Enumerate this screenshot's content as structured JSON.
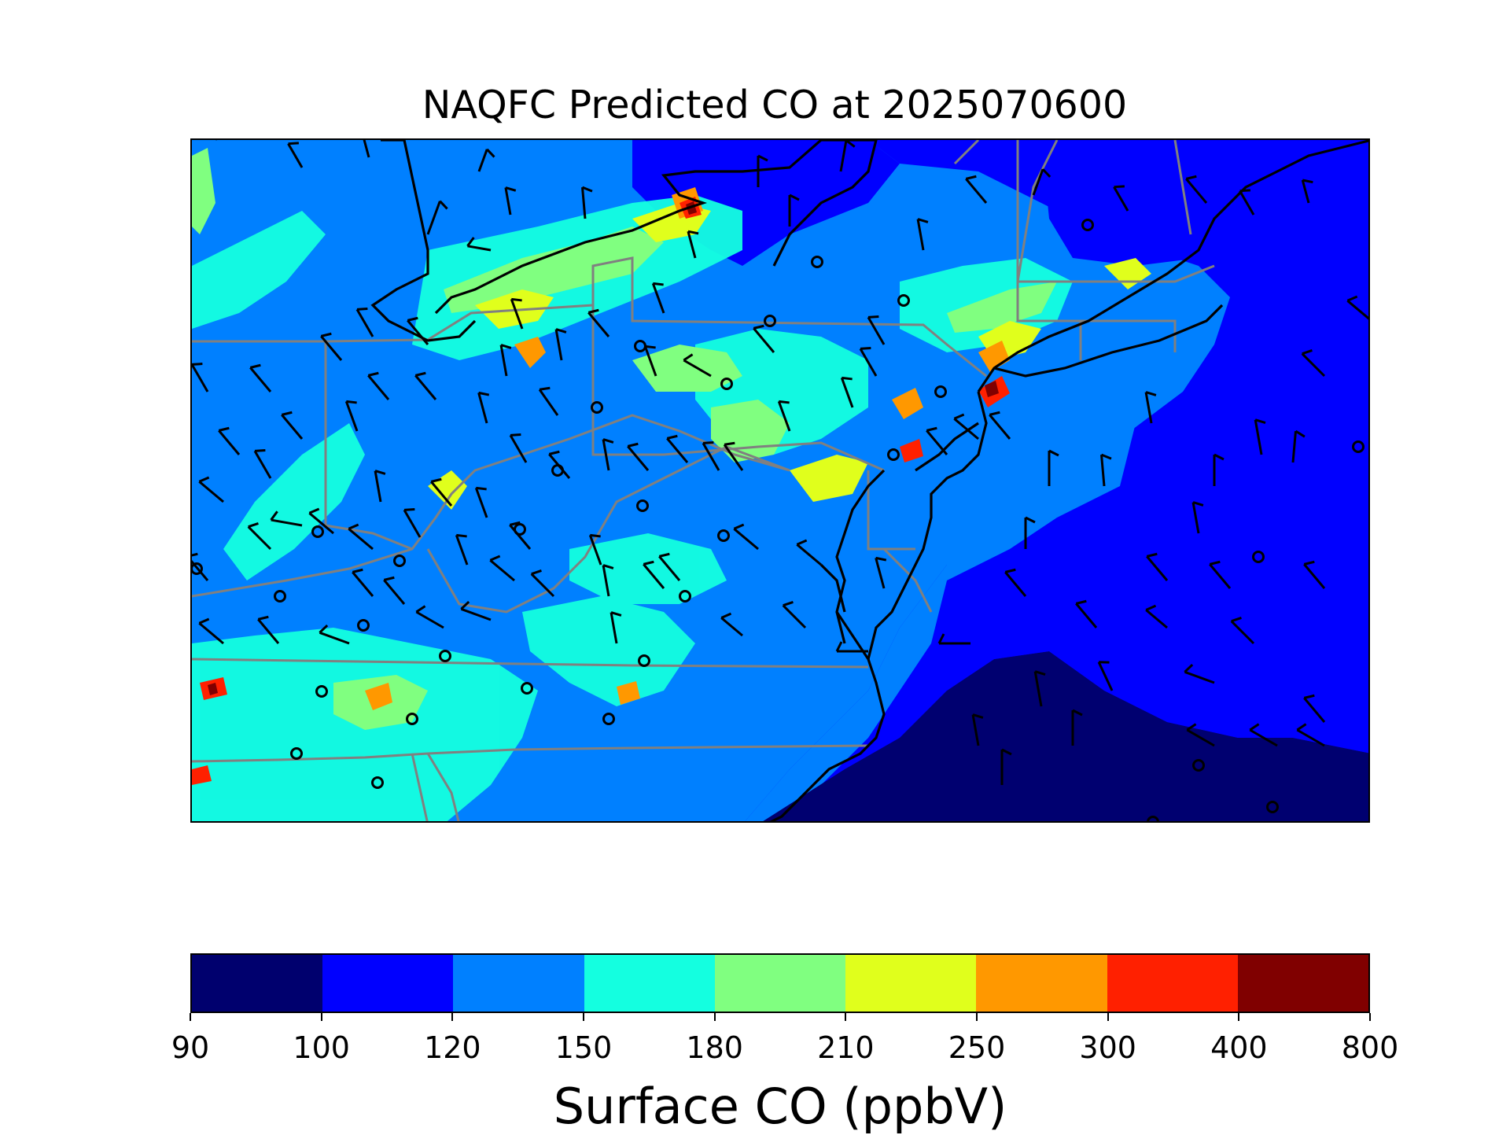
{
  "title": "NAQFC Predicted CO at 2025070600",
  "colorbar": {
    "label": "Surface CO (ppbV)",
    "ticks": [
      "90",
      "100",
      "120",
      "150",
      "180",
      "210",
      "250",
      "300",
      "400",
      "800"
    ],
    "colors": [
      "#00006e",
      "#0000ff",
      "#0080ff",
      "#14ffe0",
      "#80ff80",
      "#e0ff1c",
      "#ff9800",
      "#ff2000",
      "#800000"
    ]
  },
  "map": {
    "ocean_colors": {
      "far": "#000070",
      "mid": "#0000ff",
      "near": "#0080ff"
    },
    "land_base": "#0080ff",
    "state_line_color": "#808080",
    "coast_color": "#000000",
    "station_marker": "circle",
    "wind_symbol": "wind-barb"
  }
}
